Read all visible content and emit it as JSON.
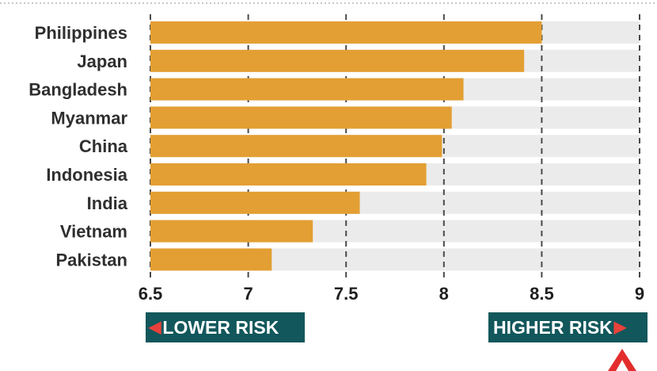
{
  "chart_data": {
    "type": "bar",
    "orientation": "horizontal",
    "categories": [
      "Philippines",
      "Japan",
      "Bangladesh",
      "Myanmar",
      "China",
      "Indonesia",
      "India",
      "Vietnam",
      "Pakistan"
    ],
    "values": [
      8.5,
      8.41,
      8.1,
      8.04,
      7.99,
      7.91,
      7.57,
      7.33,
      7.12
    ],
    "xlim": [
      6.5,
      9
    ],
    "ticks": [
      "6.5",
      "7",
      "7.5",
      "8",
      "8.5",
      "9"
    ],
    "tick_values": [
      6.5,
      7,
      7.5,
      8,
      8.5,
      9
    ],
    "grid": "vertical dashed",
    "colors": {
      "bar": "#e39f33",
      "track": "#ebebeb",
      "grid": "#4a4a4a",
      "label": "#2f2f2f"
    }
  },
  "annotations": {
    "lower_risk": "LOWER RISK",
    "higher_risk": "HIGHER RISK",
    "colors": {
      "box": "#12575b",
      "arrow": "#e8413b"
    }
  },
  "logo": {
    "color": "#e32d2d"
  }
}
